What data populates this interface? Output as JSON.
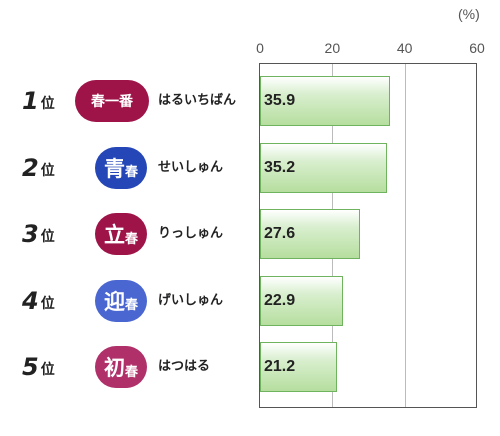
{
  "chart_data": {
    "type": "bar",
    "orientation": "horizontal",
    "unit": "(%)",
    "xlim": [
      0,
      60
    ],
    "x_ticks": [
      "0",
      "20",
      "40",
      "60"
    ],
    "grid": true,
    "categories": [
      {
        "rank_number": "1",
        "rank_suffix": "位",
        "term": "春一番",
        "term_main": "春一番",
        "term_sub": "",
        "reading": "はるいちばん",
        "color": "#9e1449"
      },
      {
        "rank_number": "2",
        "rank_suffix": "位",
        "term": "青春",
        "term_main": "青",
        "term_sub": "春",
        "reading": "せいしゅん",
        "color": "#2446b6"
      },
      {
        "rank_number": "3",
        "rank_suffix": "位",
        "term": "立春",
        "term_main": "立",
        "term_sub": "春",
        "reading": "りっしゅん",
        "color": "#9e1449"
      },
      {
        "rank_number": "4",
        "rank_suffix": "位",
        "term": "迎春",
        "term_main": "迎",
        "term_sub": "春",
        "reading": "げいしゅん",
        "color": "#4a66d0"
      },
      {
        "rank_number": "5",
        "rank_suffix": "位",
        "term": "初春",
        "term_main": "初",
        "term_sub": "春",
        "reading": "はつはる",
        "color": "#b0306a"
      }
    ],
    "values": [
      35.9,
      35.2,
      27.6,
      22.9,
      21.2
    ],
    "value_labels": [
      "35.9",
      "35.2",
      "27.6",
      "22.9",
      "21.2"
    ],
    "bar_color": "#b6de9f",
    "bar_border_color": "#6fb35e"
  }
}
